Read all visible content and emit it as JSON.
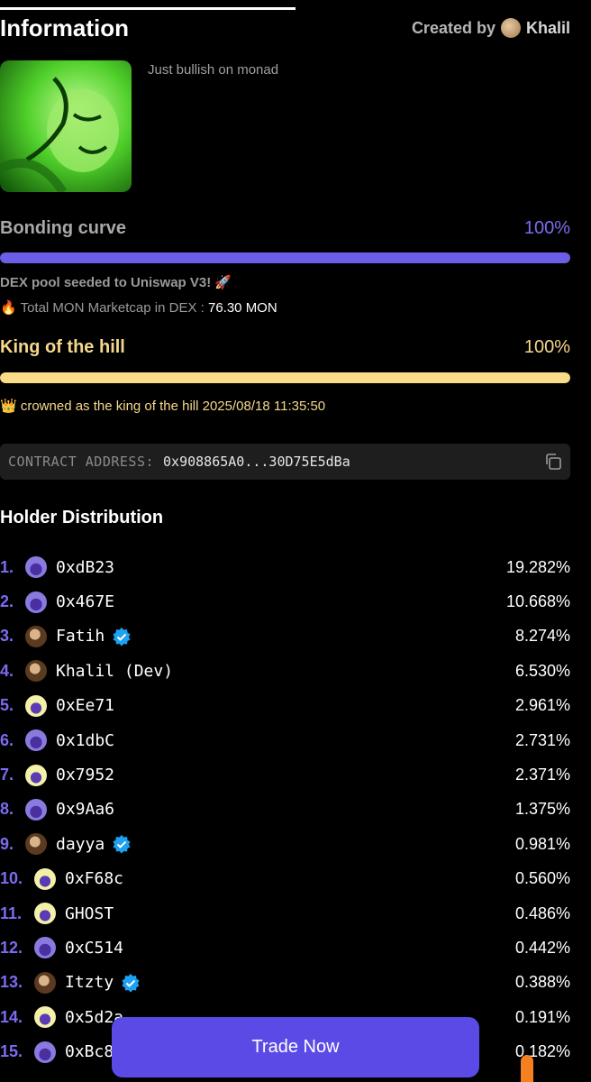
{
  "header": {
    "title": "Information",
    "created_by_label": "Created by",
    "creator_name": "Khalil"
  },
  "token": {
    "description": "Just bullish on monad"
  },
  "bonding_curve": {
    "label": "Bonding curve",
    "percent_label": "100%",
    "progress": 1.0,
    "dex_note": "DEX pool seeded to Uniswap V3! 🚀",
    "mcap_label": "🔥 Total MON Marketcap in DEX :",
    "mcap_value": "76.30 MON"
  },
  "king_of_hill": {
    "label": "King of the hill",
    "percent_label": "100%",
    "progress": 1.0,
    "crowned_text": "👑 crowned as the king of the hill 2025/08/18 11:35:50"
  },
  "contract": {
    "label": "CONTRACT ADDRESS:",
    "address": "0x908865A0...30D75E5dBa"
  },
  "holders": {
    "title": "Holder Distribution",
    "rows": [
      {
        "rank": "1.",
        "name": "0xdB23",
        "pct": "19.282%",
        "avatar": "purple-cat",
        "verified": false
      },
      {
        "rank": "2.",
        "name": "0x467E",
        "pct": "10.668%",
        "avatar": "purple-cat",
        "verified": false
      },
      {
        "rank": "3.",
        "name": "Fatih",
        "pct": "8.274%",
        "avatar": "photo",
        "verified": true
      },
      {
        "rank": "4.",
        "name": "Khalil (Dev)",
        "pct": "6.530%",
        "avatar": "photo",
        "verified": false
      },
      {
        "rank": "5.",
        "name": "0xEe71",
        "pct": "2.961%",
        "avatar": "yellow-cat",
        "verified": false
      },
      {
        "rank": "6.",
        "name": "0x1dbC",
        "pct": "2.731%",
        "avatar": "purple-cat",
        "verified": false
      },
      {
        "rank": "7.",
        "name": "0x7952",
        "pct": "2.371%",
        "avatar": "yellow-cat",
        "verified": false
      },
      {
        "rank": "8.",
        "name": "0x9Aa6",
        "pct": "1.375%",
        "avatar": "purple-cat",
        "verified": false
      },
      {
        "rank": "9.",
        "name": "dayya",
        "pct": "0.981%",
        "avatar": "photo",
        "verified": true
      },
      {
        "rank": "10.",
        "name": "0xF68c",
        "pct": "0.560%",
        "avatar": "yellow-cat",
        "verified": false
      },
      {
        "rank": "11.",
        "name": "GHOST",
        "pct": "0.486%",
        "avatar": "yellow-cat",
        "verified": false
      },
      {
        "rank": "12.",
        "name": "0xC514",
        "pct": "0.442%",
        "avatar": "purple-cat",
        "verified": false
      },
      {
        "rank": "13.",
        "name": "Itzty",
        "pct": "0.388%",
        "avatar": "photo",
        "verified": true
      },
      {
        "rank": "14.",
        "name": "0x5d2a",
        "pct": "0.191%",
        "avatar": "yellow-cat",
        "verified": false
      },
      {
        "rank": "15.",
        "name": "0xBc8",
        "pct": "0.182%",
        "avatar": "purple-cat",
        "verified": false
      }
    ]
  },
  "actions": {
    "trade_label": "Trade Now"
  },
  "colors": {
    "accent_purple": "#6d5ee8",
    "gold": "#f8dc87",
    "trade_button": "#5b4be6"
  }
}
